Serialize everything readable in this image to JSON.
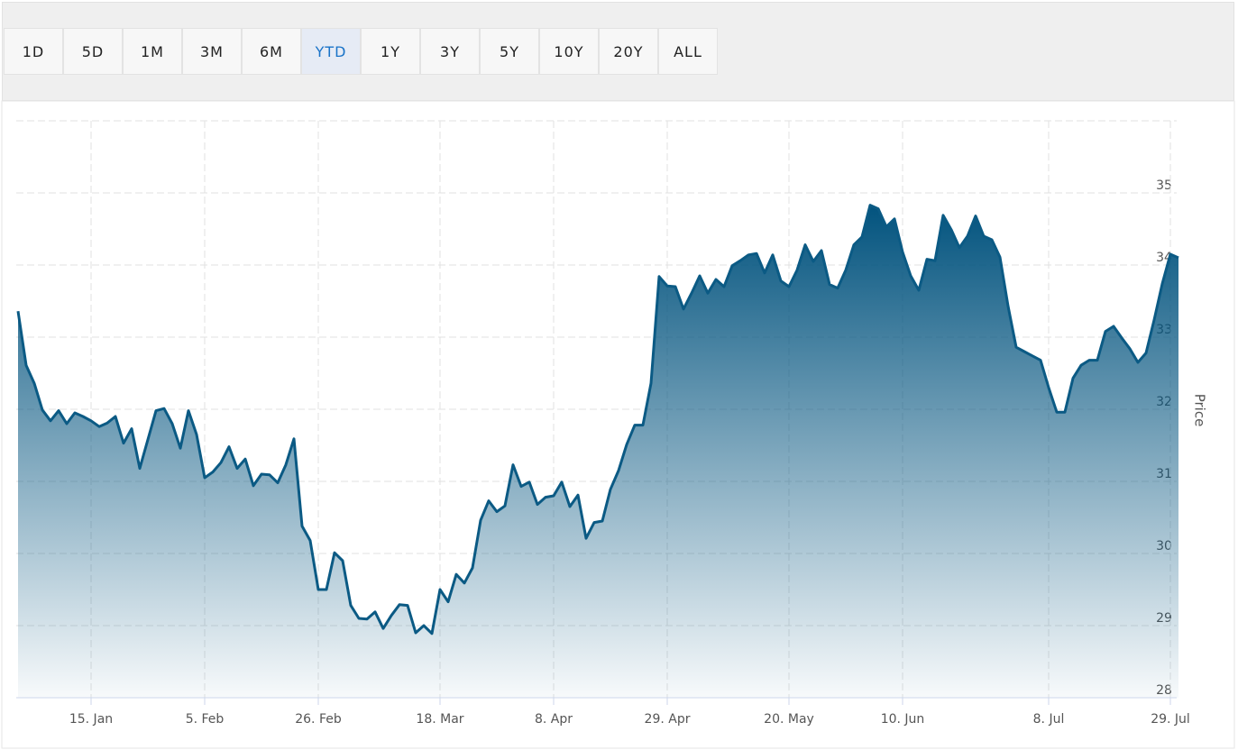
{
  "toolbar": {
    "buttons": [
      "1D",
      "5D",
      "1M",
      "3M",
      "6M",
      "YTD",
      "1Y",
      "3Y",
      "5Y",
      "10Y",
      "20Y",
      "ALL"
    ],
    "selected": 5
  },
  "chart_data": {
    "type": "area",
    "y_axis_label": "Price",
    "color": "#0b5a84",
    "grid": true,
    "ylim": [
      28,
      36
    ],
    "yticks": [
      28,
      29,
      30,
      31,
      32,
      33,
      34,
      35
    ],
    "categories": [
      null,
      null,
      null,
      null,
      null,
      null,
      null,
      null,
      null,
      "15. Jan",
      null,
      null,
      null,
      null,
      null,
      null,
      null,
      null,
      null,
      null,
      null,
      null,
      null,
      "5. Feb",
      null,
      null,
      null,
      null,
      null,
      null,
      null,
      null,
      null,
      null,
      null,
      null,
      null,
      "26. Feb",
      null,
      null,
      null,
      null,
      null,
      null,
      null,
      null,
      null,
      null,
      null,
      null,
      null,
      null,
      "18. Mar",
      null,
      null,
      null,
      null,
      null,
      null,
      null,
      null,
      null,
      null,
      null,
      null,
      null,
      "8. Apr",
      null,
      null,
      null,
      null,
      null,
      null,
      null,
      null,
      null,
      null,
      null,
      null,
      null,
      "29. Apr",
      null,
      null,
      null,
      null,
      null,
      null,
      null,
      null,
      null,
      null,
      null,
      null,
      null,
      null,
      "20. May",
      null,
      null,
      null,
      null,
      null,
      null,
      null,
      null,
      null,
      null,
      null,
      null,
      null,
      "10. Jun",
      null,
      null,
      null,
      null,
      null,
      null,
      null,
      null,
      null,
      null,
      null,
      null,
      null,
      null,
      null,
      null,
      null,
      "8. Jul",
      null,
      null,
      null,
      null,
      null,
      null,
      null,
      null,
      null,
      null,
      null,
      null,
      null,
      null,
      "29. Jul",
      null
    ],
    "values": [
      33.36,
      32.61,
      32.36,
      31.99,
      31.84,
      31.98,
      31.8,
      31.95,
      31.9,
      31.84,
      31.76,
      31.81,
      31.9,
      31.53,
      31.73,
      31.18,
      31.58,
      31.98,
      32.01,
      31.8,
      31.46,
      31.98,
      31.65,
      31.05,
      31.13,
      31.26,
      31.48,
      31.18,
      31.31,
      30.94,
      31.1,
      31.09,
      30.98,
      31.23,
      31.59,
      30.38,
      30.18,
      29.5,
      29.5,
      30.01,
      29.9,
      29.28,
      29.1,
      29.09,
      29.19,
      28.96,
      29.14,
      29.29,
      29.28,
      28.9,
      29.0,
      28.89,
      29.5,
      29.33,
      29.71,
      29.59,
      29.8,
      30.46,
      30.73,
      30.58,
      30.66,
      31.23,
      30.93,
      30.99,
      30.68,
      30.78,
      30.8,
      30.99,
      30.65,
      30.81,
      30.21,
      30.43,
      30.45,
      30.89,
      31.15,
      31.51,
      31.78,
      31.78,
      32.36,
      33.84,
      33.71,
      33.7,
      33.39,
      33.61,
      33.85,
      33.61,
      33.8,
      33.7,
      33.99,
      34.06,
      34.14,
      34.16,
      33.89,
      34.14,
      33.78,
      33.7,
      33.93,
      34.28,
      34.05,
      34.2,
      33.73,
      33.68,
      33.93,
      34.28,
      34.39,
      34.83,
      34.78,
      34.53,
      34.64,
      34.18,
      33.85,
      33.65,
      34.08,
      34.06,
      34.69,
      34.49,
      34.24,
      34.4,
      34.68,
      34.4,
      34.35,
      34.11,
      33.43,
      32.86,
      32.8,
      32.74,
      32.68,
      32.3,
      31.96,
      31.96,
      32.43,
      32.61,
      32.68,
      32.68,
      33.08,
      33.15,
      32.99,
      32.84,
      32.65,
      32.78,
      33.24,
      33.74,
      34.15,
      34.1
    ]
  }
}
